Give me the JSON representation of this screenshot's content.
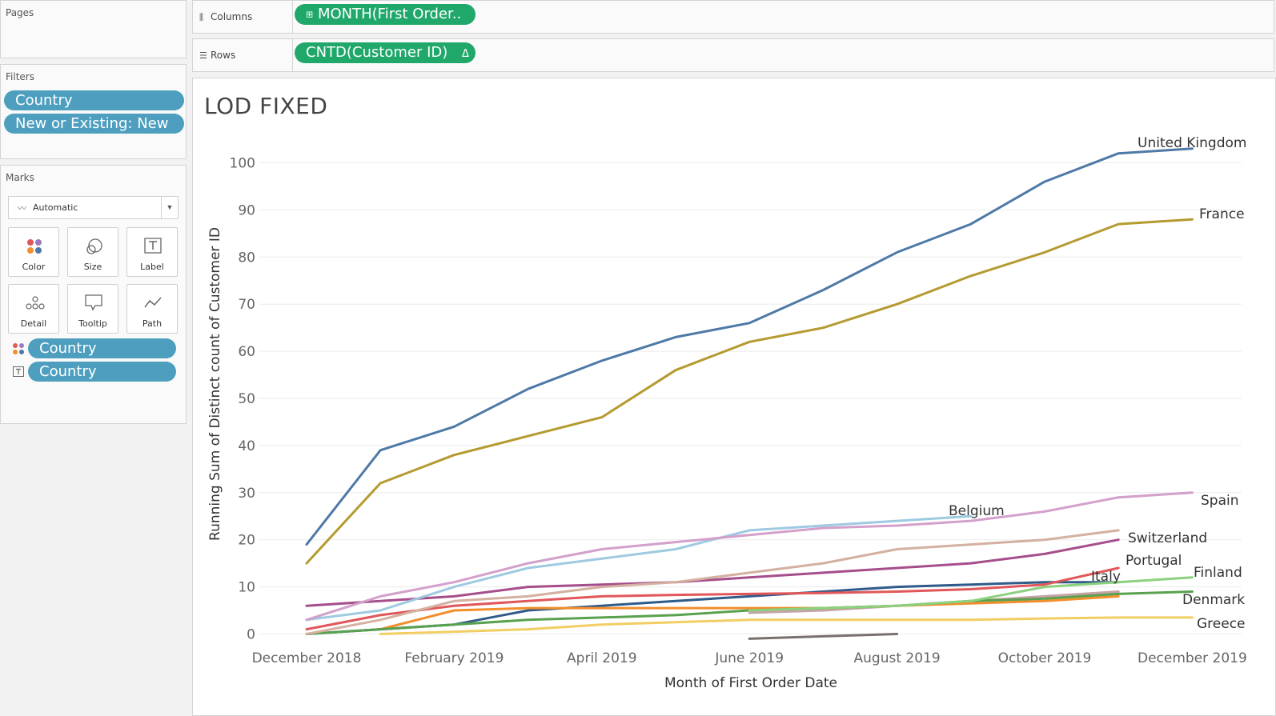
{
  "pages_panel": {
    "title": "Pages"
  },
  "filters_panel": {
    "title": "Filters",
    "pills": [
      "Country",
      "New or Existing: New"
    ]
  },
  "marks_panel": {
    "title": "Marks",
    "mark_type": "Automatic",
    "buttons": [
      "Color",
      "Size",
      "Label",
      "Detail",
      "Tooltip",
      "Path"
    ],
    "color_pill": "Country",
    "label_pill": "Country"
  },
  "columns_shelf": {
    "label": "Columns",
    "pill": "MONTH(First Order.."
  },
  "rows_shelf": {
    "label": "Rows",
    "pill": "CNTD(Customer ID)",
    "pill_delta": "Δ"
  },
  "colors": {
    "pill_blue": "#4e9fbf",
    "pill_green": "#1fa86a"
  },
  "chart_data": {
    "type": "line",
    "title": "LOD FIXED",
    "xlabel": "Month of First Order Date",
    "ylabel": "Running Sum of Distinct count of Customer ID",
    "ylim": [
      0,
      110
    ],
    "yticks": [
      0,
      10,
      20,
      30,
      40,
      50,
      60,
      70,
      80,
      90,
      100
    ],
    "grid": true,
    "x": [
      "2018-12",
      "2019-01",
      "2019-02",
      "2019-03",
      "2019-04",
      "2019-05",
      "2019-06",
      "2019-07",
      "2019-08",
      "2019-09",
      "2019-10",
      "2019-11",
      "2019-12"
    ],
    "xtick_labels": [
      {
        "month": "2018-12",
        "label": "December 2018"
      },
      {
        "month": "2019-02",
        "label": "February 2019"
      },
      {
        "month": "2019-04",
        "label": "April 2019"
      },
      {
        "month": "2019-06",
        "label": "June 2019"
      },
      {
        "month": "2019-08",
        "label": "August 2019"
      },
      {
        "month": "2019-10",
        "label": "October 2019"
      },
      {
        "month": "2019-12",
        "label": "December 2019"
      }
    ],
    "series": [
      {
        "name": "United Kingdom",
        "color": "#4e79a7",
        "labeled": true,
        "values": [
          19,
          39,
          44,
          52,
          58,
          63,
          66,
          73,
          81,
          87,
          96,
          102,
          103
        ]
      },
      {
        "name": "France",
        "color": "#b49a2f",
        "labeled": true,
        "values": [
          15,
          32,
          38,
          42,
          46,
          56,
          62,
          65,
          70,
          76,
          81,
          87,
          88
        ]
      },
      {
        "name": "Spain",
        "color": "#d3a0cc",
        "labeled": true,
        "values": [
          3,
          8,
          11,
          15,
          18,
          19.5,
          21,
          22.5,
          23,
          24,
          26,
          29,
          30
        ]
      },
      {
        "name": "Belgium",
        "color": "#9ecae1",
        "labeled": true,
        "values": [
          3,
          5,
          10,
          14,
          16,
          18,
          22,
          23,
          24,
          25,
          null,
          null,
          null
        ]
      },
      {
        "name": "Switzerland",
        "color": "#d4b0a0",
        "labeled": true,
        "values": [
          0,
          3,
          7,
          8,
          10,
          11,
          13,
          15,
          18,
          19,
          20,
          22,
          null
        ]
      },
      {
        "name": "Portugal",
        "color": "#a64d8c",
        "labeled": true,
        "values": [
          6,
          7,
          8,
          10,
          10.5,
          11,
          12,
          13,
          14,
          15,
          17,
          20,
          null
        ]
      },
      {
        "name": "Italy",
        "color": "#e15759",
        "labeled": true,
        "values": [
          1,
          4,
          6,
          7,
          8,
          8.3,
          8.5,
          8.7,
          9,
          9.5,
          10.5,
          14,
          null
        ]
      },
      {
        "name": "Finland",
        "color": "#8cd17d",
        "labeled": true,
        "values": [
          null,
          null,
          null,
          null,
          null,
          null,
          5,
          5.5,
          6,
          7,
          10,
          11,
          12
        ]
      },
      {
        "name": "Denmark",
        "color": "#59a14f",
        "labeled": true,
        "values": [
          0,
          1,
          2,
          3,
          3.5,
          4,
          5,
          5.5,
          6,
          7,
          7.5,
          8.5,
          9
        ]
      },
      {
        "name": "Greece",
        "color": "#f1ce63",
        "labeled": true,
        "values": [
          null,
          0,
          0.5,
          1,
          2,
          2.5,
          3,
          3,
          3,
          3,
          3.3,
          3.5,
          3.5
        ]
      },
      {
        "name": "",
        "color": "#f28e2b",
        "labeled": false,
        "values": [
          null,
          1,
          5,
          5.5,
          5.5,
          5.5,
          5.5,
          5.5,
          6,
          6.5,
          7,
          8,
          null
        ]
      },
      {
        "name": "",
        "color": "#2f5b8a",
        "labeled": false,
        "values": [
          0,
          1,
          2,
          5,
          6,
          7,
          8,
          9,
          10,
          10.5,
          11,
          11,
          null
        ]
      },
      {
        "name": "",
        "color": "#c7a2a6",
        "labeled": false,
        "values": [
          null,
          null,
          null,
          null,
          null,
          null,
          4.5,
          5,
          6,
          7,
          8,
          9,
          null
        ]
      },
      {
        "name": "",
        "color": "#79706e",
        "labeled": false,
        "values": [
          null,
          null,
          null,
          null,
          null,
          null,
          -1,
          -0.5,
          0,
          null,
          null,
          null,
          null
        ]
      }
    ]
  }
}
